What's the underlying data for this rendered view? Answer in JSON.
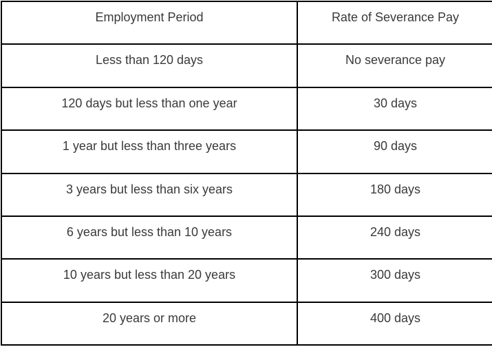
{
  "table": {
    "columns": [
      "Employment Period",
      "Rate of Severance Pay"
    ],
    "rows": [
      {
        "period": "Less than 120 days",
        "rate": "No severance pay"
      },
      {
        "period": "120 days but less than one year",
        "rate": "30 days"
      },
      {
        "period": "1 year but less than three years",
        "rate": "90 days"
      },
      {
        "period": "3 years but less than six years",
        "rate": "180 days"
      },
      {
        "period": "6 years but less than 10 years",
        "rate": "240 days"
      },
      {
        "period": "10 years but less than 20 years",
        "rate": "300 days"
      },
      {
        "period": "20 years or more",
        "rate": "400 days"
      }
    ]
  },
  "colors": {
    "border": "#000000",
    "text": "#3a3a3a",
    "background": "#ffffff"
  }
}
